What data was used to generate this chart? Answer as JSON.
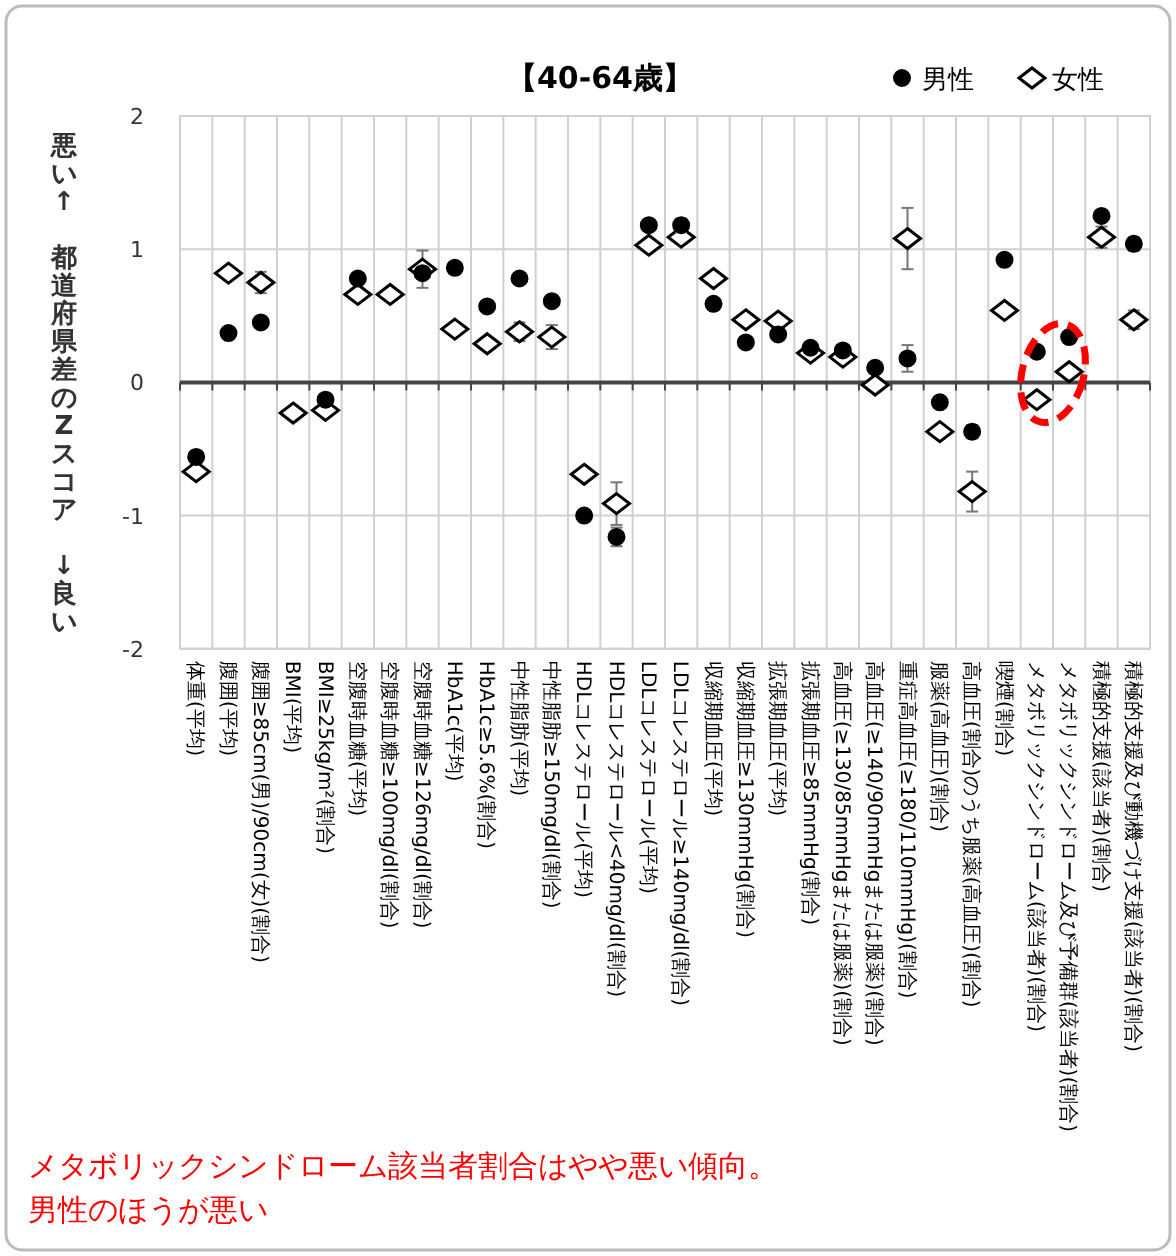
{
  "chart_data": {
    "type": "scatter",
    "title": "【40-64歳】",
    "ylabel": "悪い↑ 都道府県差のZスコア ↓良い",
    "categories": [
      "体重(平均)",
      "腹囲(平均)",
      "腹囲≥85cm(男)/90cm(女)(割合)",
      "BMI(平均)",
      "BMI≥25kg/m²(割合)",
      "空腹時血糖(平均)",
      "空腹時血糖≥100mg/dl(割合)",
      "空腹時血糖≥126mg/dl(割合)",
      "HbA1c(平均)",
      "HbA1c≥5.6%(割合)",
      "中性脂肪(平均)",
      "中性脂肪≥150mg/dl(割合)",
      "HDLコレステロール(平均)",
      "HDLコレステロール<40mg/dl(割合)",
      "LDLコレステロール(平均)",
      "LDLコレステロール≥140mg/dl(割合)",
      "収縮期血圧(平均)",
      "収縮期血圧≥130mmHg(割合)",
      "拡張期血圧(平均)",
      "拡張期血圧≥85mmHg(割合)",
      "高血圧(≥130/85mmHgまたは服薬)(割合)",
      "高血圧(≥140/90mmHgまたは服薬)(割合)",
      "重症高血圧(≥180/110mmHg)(割合)",
      "服薬(高血圧)(割合)",
      "高血圧(割合)のうち服薬(高血圧)(割合)",
      "喫煙(割合)",
      "メタボリックシンドローム(該当者)(割合)",
      "メタボリックシンドローム及び予備群(該当者)(割合)",
      "積極的支援(該当者)(割合)",
      "積極的支援及び動機づけ支援(該当者)(割合)"
    ],
    "series": [
      {
        "name": "男性",
        "color": "#000000",
        "marker": "circle",
        "values": [
          -0.56,
          0.37,
          0.45,
          null,
          -0.13,
          0.78,
          null,
          0.82,
          0.86,
          0.57,
          0.78,
          0.61,
          -1.0,
          -1.16,
          1.18,
          1.18,
          0.59,
          0.3,
          0.36,
          0.26,
          0.24,
          0.11,
          0.18,
          -0.15,
          -0.37,
          0.92,
          0.23,
          0.34,
          1.25,
          1.04
        ],
        "errors": [
          null,
          null,
          null,
          null,
          null,
          null,
          null,
          null,
          null,
          null,
          null,
          0.04,
          null,
          0.07,
          0.04,
          0.05,
          null,
          null,
          null,
          null,
          null,
          null,
          0.1,
          null,
          0.05,
          null,
          null,
          null,
          0.03,
          0.05
        ]
      },
      {
        "name": "女性",
        "color": "#000000",
        "marker": "diamond",
        "values": [
          -0.67,
          0.82,
          0.75,
          -0.23,
          -0.21,
          0.66,
          0.66,
          0.85,
          0.4,
          0.29,
          0.38,
          0.34,
          -0.69,
          -0.91,
          1.03,
          1.09,
          0.78,
          0.47,
          0.46,
          0.22,
          0.19,
          -0.02,
          1.08,
          -0.37,
          -0.82,
          0.54,
          -0.13,
          0.08,
          1.09,
          0.47
        ],
        "errors": [
          null,
          null,
          0.08,
          null,
          null,
          null,
          null,
          0.14,
          null,
          null,
          0.07,
          0.09,
          null,
          0.16,
          0.04,
          0.05,
          null,
          null,
          null,
          null,
          null,
          null,
          0.23,
          null,
          0.15,
          null,
          0.03,
          null,
          0.08,
          0.07
        ]
      }
    ],
    "ylim": [
      -2,
      2
    ],
    "yticks": [
      2,
      1,
      0,
      -1,
      -2
    ],
    "grid": true,
    "legend": "top right",
    "annotations": [
      "メタボリックシンドローム該当者割合はやや悪い傾向。",
      "男性のほうが悪い"
    ]
  }
}
